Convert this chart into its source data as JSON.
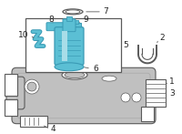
{
  "bg_color": "#ffffff",
  "line_color": "#5a5a5a",
  "blue_fill": "#5bbfd4",
  "blue_dark": "#3a9ab5",
  "blue_light": "#a8dde8",
  "gray_tank": "#c0c0c0",
  "gray_mid": "#a8a8a8",
  "figsize": [
    2.0,
    1.47
  ],
  "dpi": 100
}
